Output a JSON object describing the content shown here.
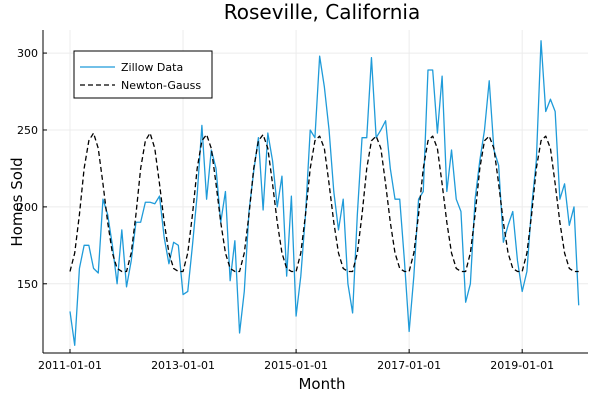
{
  "chart_data": {
    "type": "line",
    "title": "Roseville, California",
    "xlabel": "Month",
    "ylabel": "Homes Sold",
    "x_start": "2011-01-01",
    "x_end": "2019-12-01",
    "x_ticks": [
      "2011-01-01",
      "2013-01-01",
      "2015-01-01",
      "2017-01-01",
      "2019-01-01"
    ],
    "y_ticks": [
      150,
      200,
      250,
      300
    ],
    "ylim": [
      105,
      315
    ],
    "grid": true,
    "legend_position": "top-left",
    "series": [
      {
        "name": "Zillow Data",
        "color": "#1f9bd9",
        "style": "solid",
        "values": [
          132,
          110,
          160,
          175,
          175,
          160,
          157,
          205,
          195,
          175,
          150,
          185,
          148,
          165,
          190,
          190,
          203,
          203,
          202,
          207,
          180,
          163,
          177,
          175,
          143,
          145,
          175,
          208,
          253,
          205,
          237,
          225,
          190,
          210,
          152,
          178,
          118,
          145,
          197,
          223,
          245,
          198,
          248,
          230,
          200,
          220,
          155,
          207,
          129,
          155,
          195,
          250,
          245,
          298,
          278,
          250,
          210,
          185,
          205,
          150,
          131,
          195,
          245,
          245,
          297,
          245,
          250,
          256,
          225,
          205,
          205,
          165,
          119,
          155,
          205,
          210,
          289,
          289,
          248,
          285,
          210,
          237,
          205,
          197,
          138,
          150,
          205,
          230,
          250,
          282,
          237,
          227,
          177,
          188,
          197,
          165,
          145,
          158,
          200,
          230,
          308,
          262,
          270,
          262,
          205,
          215,
          188,
          200,
          136
        ]
      },
      {
        "name": "Newton-Gauss",
        "color": "#000000",
        "style": "dashed",
        "values": [
          158,
          170,
          195,
          225,
          243,
          248,
          238,
          215,
          190,
          170,
          160,
          158,
          158,
          170,
          195,
          225,
          243,
          248,
          238,
          215,
          190,
          170,
          160,
          158,
          158,
          170,
          195,
          225,
          243,
          247,
          238,
          215,
          190,
          170,
          160,
          158,
          158,
          170,
          195,
          225,
          243,
          247,
          238,
          215,
          190,
          170,
          160,
          158,
          158,
          170,
          195,
          225,
          243,
          246,
          238,
          215,
          190,
          170,
          160,
          158,
          158,
          170,
          195,
          225,
          243,
          246,
          238,
          215,
          190,
          170,
          160,
          158,
          158,
          170,
          195,
          225,
          243,
          246,
          238,
          215,
          190,
          170,
          160,
          158,
          158,
          170,
          195,
          225,
          243,
          246,
          238,
          215,
          190,
          170,
          160,
          158,
          158,
          170,
          195,
          225,
          243,
          246,
          238,
          215,
          190,
          170,
          160,
          158,
          158
        ]
      }
    ]
  }
}
